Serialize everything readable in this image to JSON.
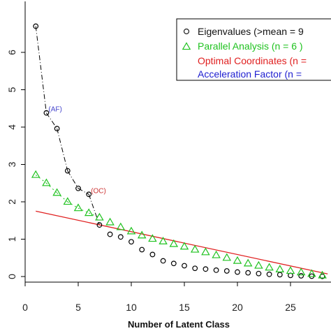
{
  "chart_data": {
    "type": "scatter",
    "title": "",
    "xlabel": "Number of Latent Class",
    "ylabel": "",
    "xlim": [
      0,
      28.5
    ],
    "ylim": [
      -0.2,
      7.3
    ],
    "xticks": [
      0,
      5,
      10,
      15,
      20,
      25
    ],
    "yticks": [
      0,
      1,
      2,
      3,
      4,
      5,
      6
    ],
    "grid": false,
    "legend_position": "top-right",
    "series": [
      {
        "name": "Eigenvalues (>mean = 9",
        "marker": "circle",
        "color": "#000000",
        "x": [
          1,
          2,
          3,
          4,
          5,
          6,
          7,
          8,
          9,
          10,
          11,
          12,
          13,
          14,
          15,
          16,
          17,
          18,
          19,
          20,
          21,
          22,
          23,
          24,
          25,
          26,
          27,
          28
        ],
        "values": [
          6.7,
          4.38,
          3.96,
          2.83,
          2.36,
          2.2,
          1.38,
          1.13,
          1.06,
          0.93,
          0.72,
          0.59,
          0.42,
          0.35,
          0.29,
          0.22,
          0.2,
          0.17,
          0.15,
          0.12,
          0.1,
          0.08,
          0.06,
          0.05,
          0.03,
          0.02,
          0.01,
          0.005
        ]
      },
      {
        "name": "Parallel Analysis (n = 6 )",
        "marker": "triangle",
        "color": "#1fc21f",
        "x": [
          1,
          2,
          3,
          4,
          5,
          6,
          7,
          8,
          9,
          10,
          11,
          12,
          13,
          14,
          15,
          16,
          17,
          18,
          19,
          20,
          21,
          22,
          23,
          24,
          25,
          26,
          27,
          28
        ],
        "values": [
          2.72,
          2.5,
          2.24,
          2.0,
          1.83,
          1.7,
          1.58,
          1.45,
          1.32,
          1.21,
          1.1,
          1.01,
          0.94,
          0.87,
          0.8,
          0.72,
          0.65,
          0.57,
          0.5,
          0.42,
          0.35,
          0.29,
          0.24,
          0.19,
          0.15,
          0.11,
          0.07,
          0.03
        ]
      }
    ],
    "lines": [
      {
        "name": "Optimal Coordinates (n =",
        "color": "#e02020",
        "x": [
          1,
          28.5
        ],
        "values": [
          1.75,
          0.07
        ]
      }
    ],
    "legend": [
      {
        "label": "Eigenvalues (>mean = 9",
        "symbol": "circle",
        "color": "#222222"
      },
      {
        "label": "Parallel Analysis (n = 6 )",
        "symbol": "triangle",
        "color": "#1fc21f"
      },
      {
        "label": "Optimal Coordinates (n =",
        "symbol": "none",
        "color": "#e02020"
      },
      {
        "label": "Acceleration Factor (n =",
        "symbol": "none",
        "color": "#2020d0"
      }
    ],
    "annotations": [
      {
        "text": "(AF)",
        "x": 2,
        "y": 4.38,
        "color": "#4444cc"
      },
      {
        "text": "(OC)",
        "x": 6,
        "y": 2.2,
        "color": "#cc3333"
      }
    ]
  }
}
